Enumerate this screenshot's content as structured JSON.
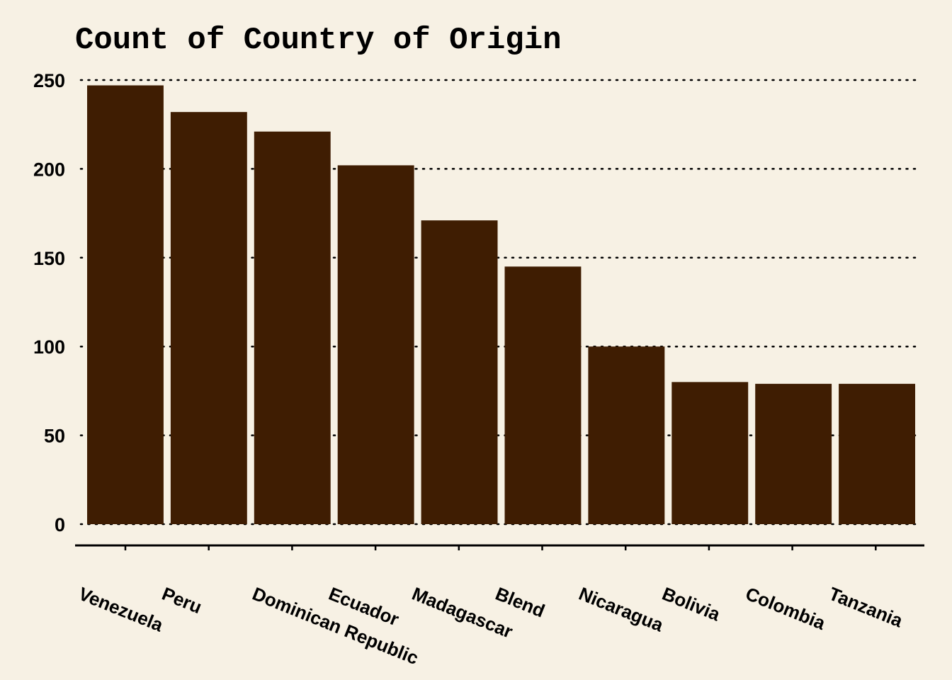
{
  "chart_data": {
    "type": "bar",
    "title": "Count of Country of Origin",
    "xlabel": "",
    "ylabel": "",
    "categories": [
      "Venezuela",
      "Peru",
      "Dominican Republic",
      "Ecuador",
      "Madagascar",
      "Blend",
      "Nicaragua",
      "Bolivia",
      "Colombia",
      "Tanzania"
    ],
    "values": [
      247,
      232,
      221,
      202,
      171,
      145,
      100,
      80,
      79,
      79
    ],
    "ylim": [
      0,
      250
    ],
    "yticks": [
      0,
      50,
      100,
      150,
      200,
      250
    ],
    "grid": "horizontal-dotted",
    "legend": "none",
    "bar_color": "#3f1d02",
    "background_color": "#f7f1e4"
  }
}
